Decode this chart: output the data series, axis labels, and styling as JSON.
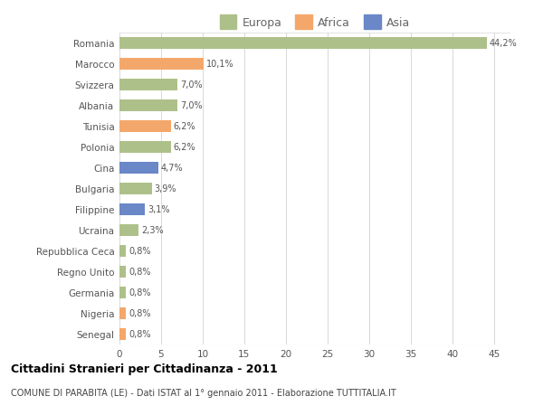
{
  "countries": [
    "Romania",
    "Marocco",
    "Svizzera",
    "Albania",
    "Tunisia",
    "Polonia",
    "Cina",
    "Bulgaria",
    "Filippine",
    "Ucraina",
    "Repubblica Ceca",
    "Regno Unito",
    "Germania",
    "Nigeria",
    "Senegal"
  ],
  "values": [
    44.2,
    10.1,
    7.0,
    7.0,
    6.2,
    6.2,
    4.7,
    3.9,
    3.1,
    2.3,
    0.8,
    0.8,
    0.8,
    0.8,
    0.8
  ],
  "labels": [
    "44,2%",
    "10,1%",
    "7,0%",
    "7,0%",
    "6,2%",
    "6,2%",
    "4,7%",
    "3,9%",
    "3,1%",
    "2,3%",
    "0,8%",
    "0,8%",
    "0,8%",
    "0,8%",
    "0,8%"
  ],
  "continents": [
    "Europa",
    "Africa",
    "Europa",
    "Europa",
    "Africa",
    "Europa",
    "Asia",
    "Europa",
    "Asia",
    "Europa",
    "Europa",
    "Europa",
    "Europa",
    "Africa",
    "Africa"
  ],
  "colors": {
    "Europa": "#aec08a",
    "Africa": "#f4a76a",
    "Asia": "#6a87c8"
  },
  "title": "Cittadini Stranieri per Cittadinanza - 2011",
  "subtitle": "COMUNE DI PARABITA (LE) - Dati ISTAT al 1° gennaio 2011 - Elaborazione TUTTITALIA.IT",
  "xlim": [
    0,
    47
  ],
  "xticks": [
    0,
    5,
    10,
    15,
    20,
    25,
    30,
    35,
    40,
    45
  ],
  "background_color": "#ffffff",
  "grid_color": "#d8d8d8"
}
